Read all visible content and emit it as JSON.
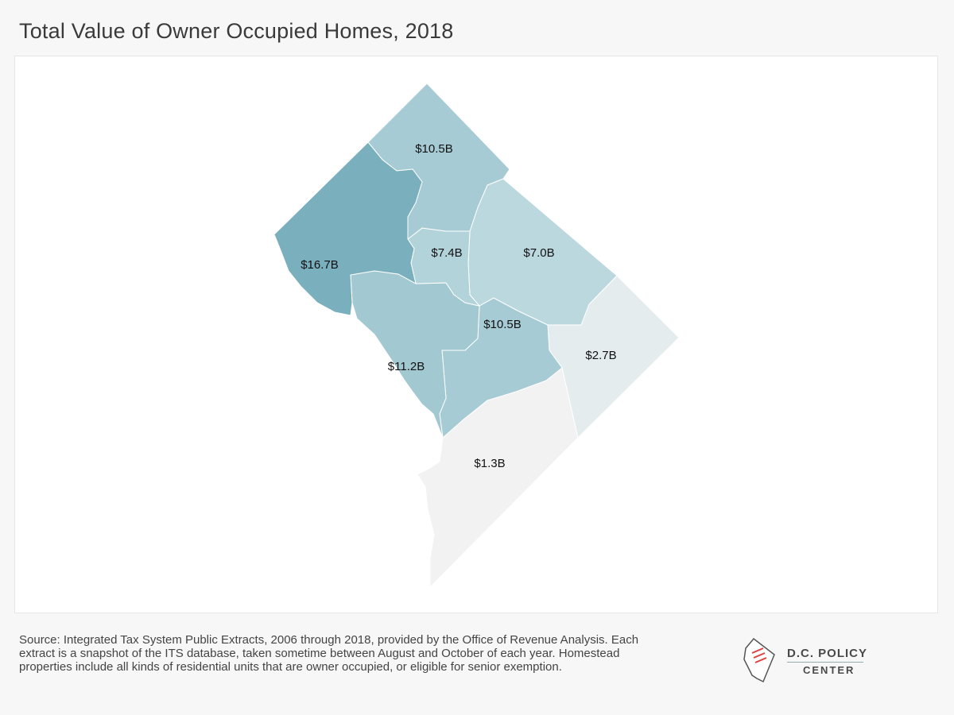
{
  "title": "Total Value of Owner Occupied Homes, 2018",
  "source": "Source: Integrated Tax System Public Extracts, 2006 through 2018, provided by the Office of Revenue Analysis. Each extract is a snapshot of the ITS database, taken sometime between August and October of each year. Homestead properties include all kinds of residential units that are owner occupied, or eligible for senior exemption.",
  "logo": {
    "line1": "D.C. POLICY",
    "line2": "CENTER"
  },
  "colors": {
    "ward_16_7": "#7aafbe",
    "ward_11_2": "#a2c8d1",
    "ward_10_5": "#a6cbd4",
    "ward_7_4": "#b3d3db",
    "ward_7_0": "#bcd8df",
    "ward_2_7": "#e4ecee",
    "ward_1_3": "#f2f2f2"
  },
  "chart_data": {
    "type": "map",
    "title": "Total Value of Owner Occupied Homes, 2018",
    "regions": [
      {
        "label": "$10.5B",
        "value_billion": 10.5
      },
      {
        "label": "$16.7B",
        "value_billion": 16.7
      },
      {
        "label": "$7.4B",
        "value_billion": 7.4
      },
      {
        "label": "$7.0B",
        "value_billion": 7.0
      },
      {
        "label": "$10.5B",
        "value_billion": 10.5
      },
      {
        "label": "$11.2B",
        "value_billion": 11.2
      },
      {
        "label": "$2.7B",
        "value_billion": 2.7
      },
      {
        "label": "$1.3B",
        "value_billion": 1.3
      }
    ]
  }
}
